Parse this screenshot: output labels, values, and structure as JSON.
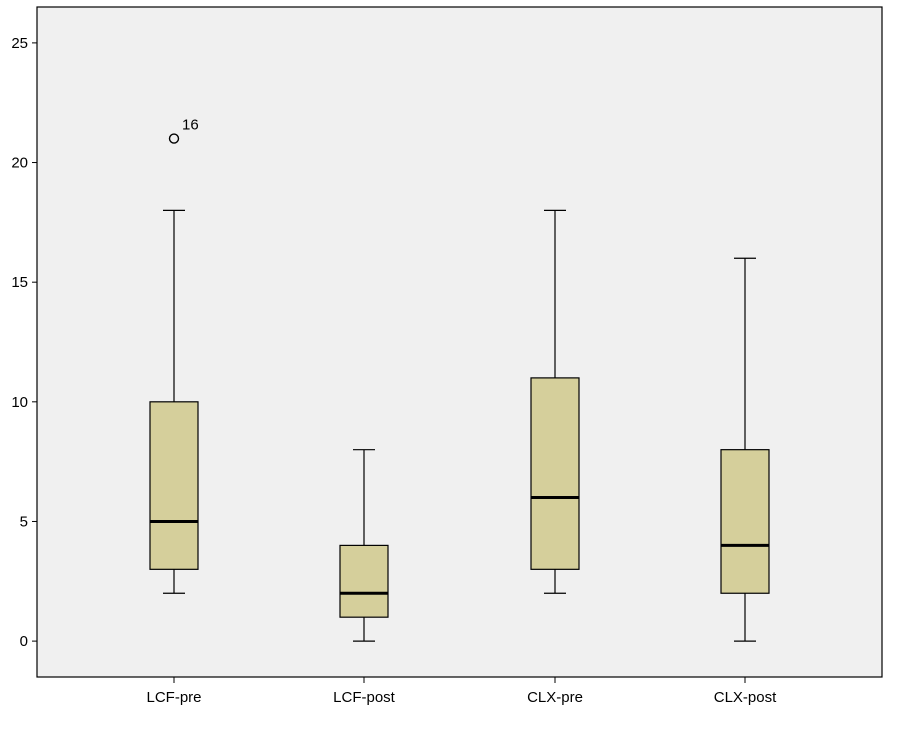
{
  "chart_data": {
    "type": "boxplot",
    "title": "",
    "xlabel": "",
    "ylabel": "",
    "ylim": [
      -1.5,
      26.5
    ],
    "yticks": [
      0,
      5,
      10,
      15,
      20,
      25
    ],
    "ytick_labels": [
      "0",
      "5",
      "10",
      "15",
      "20",
      "25"
    ],
    "grid": false,
    "categories": [
      "LCF-pre",
      "LCF-post",
      "CLX-pre",
      "CLX-post"
    ],
    "boxes": [
      {
        "category": "LCF-pre",
        "whisker_low": 2,
        "q1": 3,
        "median": 5,
        "q3": 10,
        "whisker_high": 18,
        "outliers": [
          {
            "value": 21,
            "label": "16"
          }
        ]
      },
      {
        "category": "LCF-post",
        "whisker_low": 0,
        "q1": 1,
        "median": 2,
        "q3": 4,
        "whisker_high": 8,
        "outliers": []
      },
      {
        "category": "CLX-pre",
        "whisker_low": 2,
        "q1": 3,
        "median": 6,
        "q3": 11,
        "whisker_high": 18,
        "outliers": []
      },
      {
        "category": "CLX-post",
        "whisker_low": 0,
        "q1": 2,
        "median": 4,
        "q3": 8,
        "whisker_high": 16,
        "outliers": []
      }
    ],
    "colors": {
      "plot_background": "#f0f0f0",
      "box_fill": "#d5cf9b",
      "line": "#000000"
    }
  }
}
